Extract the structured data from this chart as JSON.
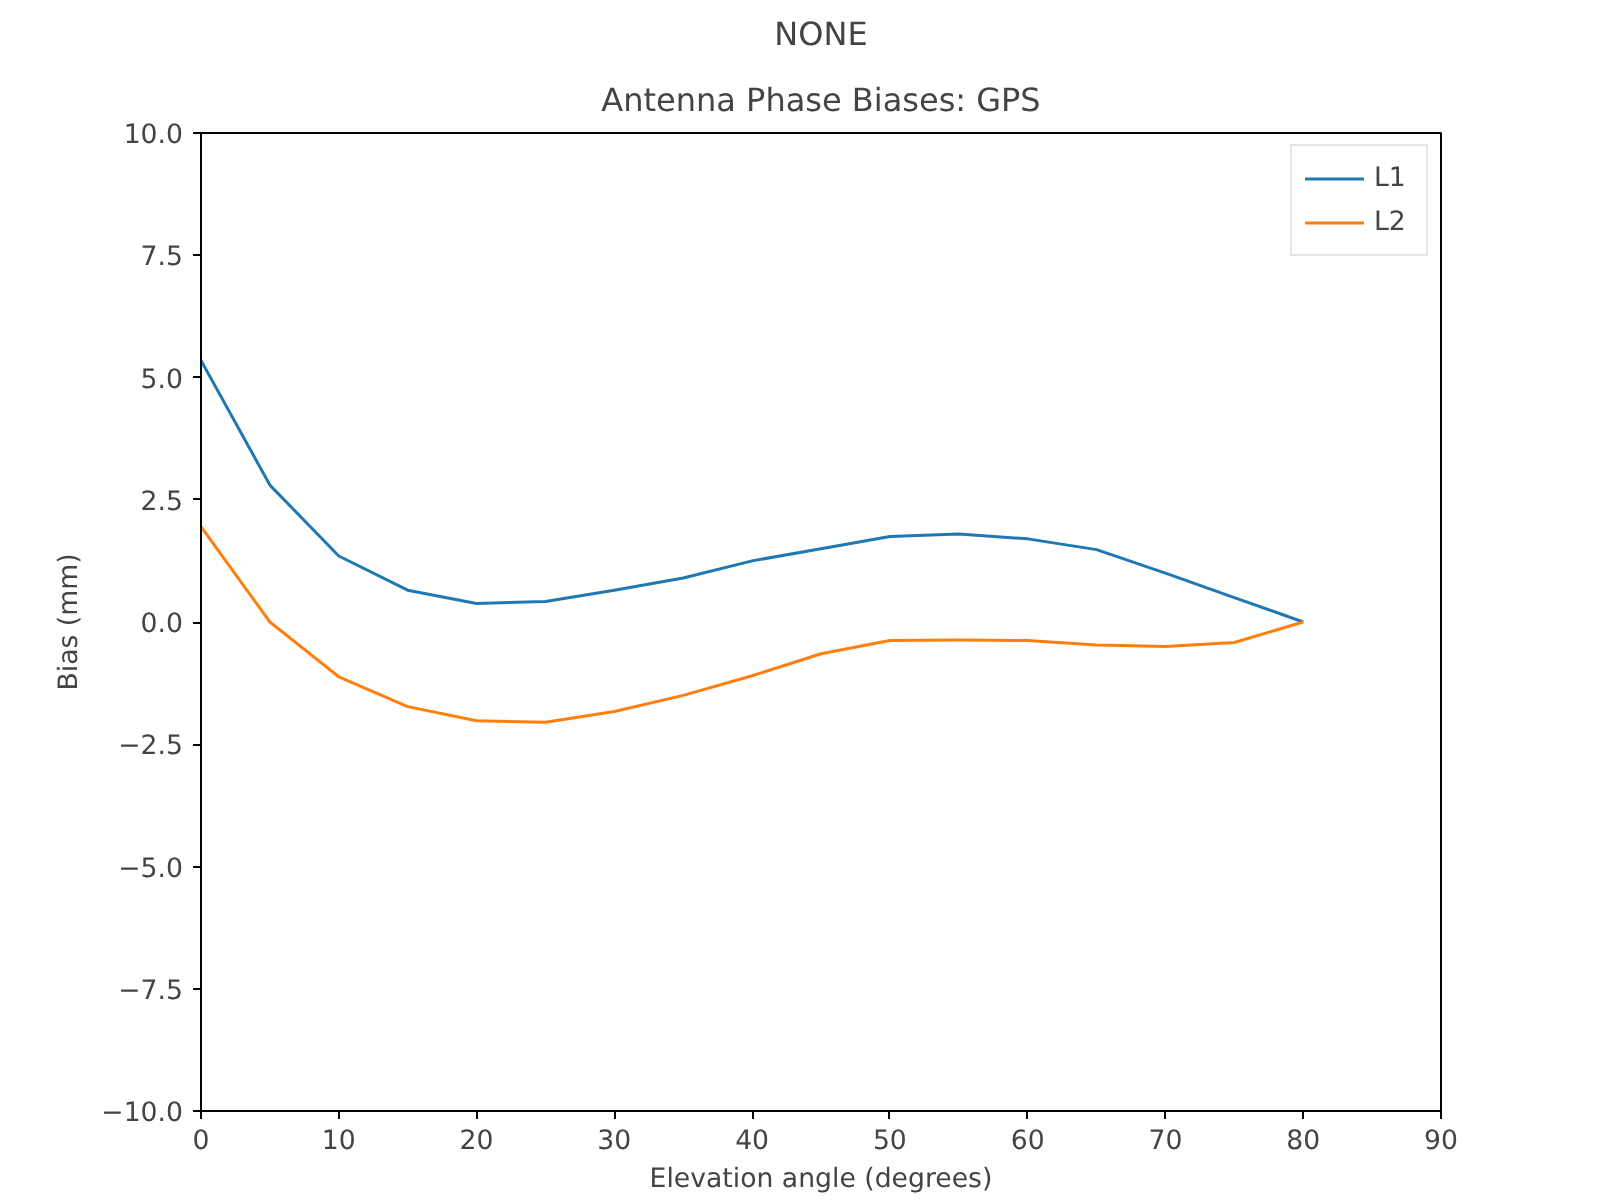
{
  "chart_data": {
    "type": "line",
    "title": "NONE",
    "subtitle": "Antenna Phase Biases: GPS",
    "xlabel": "Elevation angle (degrees)",
    "ylabel": "Bias (mm)",
    "x": [
      0,
      5,
      10,
      15,
      20,
      25,
      30,
      35,
      40,
      45,
      50,
      55,
      60,
      65,
      70,
      75,
      80
    ],
    "series": [
      {
        "name": "L1",
        "color": "#1f77b4",
        "values": [
          5.35,
          2.8,
          1.35,
          0.65,
          0.38,
          0.42,
          0.65,
          0.9,
          1.25,
          1.5,
          1.75,
          1.8,
          1.7,
          1.48,
          1.0,
          0.5,
          0.0
        ]
      },
      {
        "name": "L2",
        "color": "#ff7f0e",
        "values": [
          1.95,
          0.0,
          -1.12,
          -1.73,
          -2.02,
          -2.05,
          -1.83,
          -1.5,
          -1.1,
          -0.65,
          -0.38,
          -0.37,
          -0.38,
          -0.47,
          -0.5,
          -0.42,
          0.0
        ]
      }
    ],
    "xlim": [
      0,
      90
    ],
    "xticks": [
      0,
      10,
      20,
      30,
      40,
      50,
      60,
      70,
      80,
      90
    ],
    "ylim": [
      -10,
      10
    ],
    "yticks": [
      {
        "value": 10,
        "label": "10.0"
      },
      {
        "value": 7.5,
        "label": "7.5"
      },
      {
        "value": 5,
        "label": "5.0"
      },
      {
        "value": 2.5,
        "label": "2.5"
      },
      {
        "value": 0,
        "label": "0.0"
      },
      {
        "value": -2.5,
        "label": "−2.5"
      },
      {
        "value": -5,
        "label": "−5.0"
      },
      {
        "value": -7.5,
        "label": "−7.5"
      },
      {
        "value": -10,
        "label": "−10.0"
      }
    ],
    "grid": false,
    "legend": "top right",
    "marker": "none",
    "line_style": "solid"
  }
}
